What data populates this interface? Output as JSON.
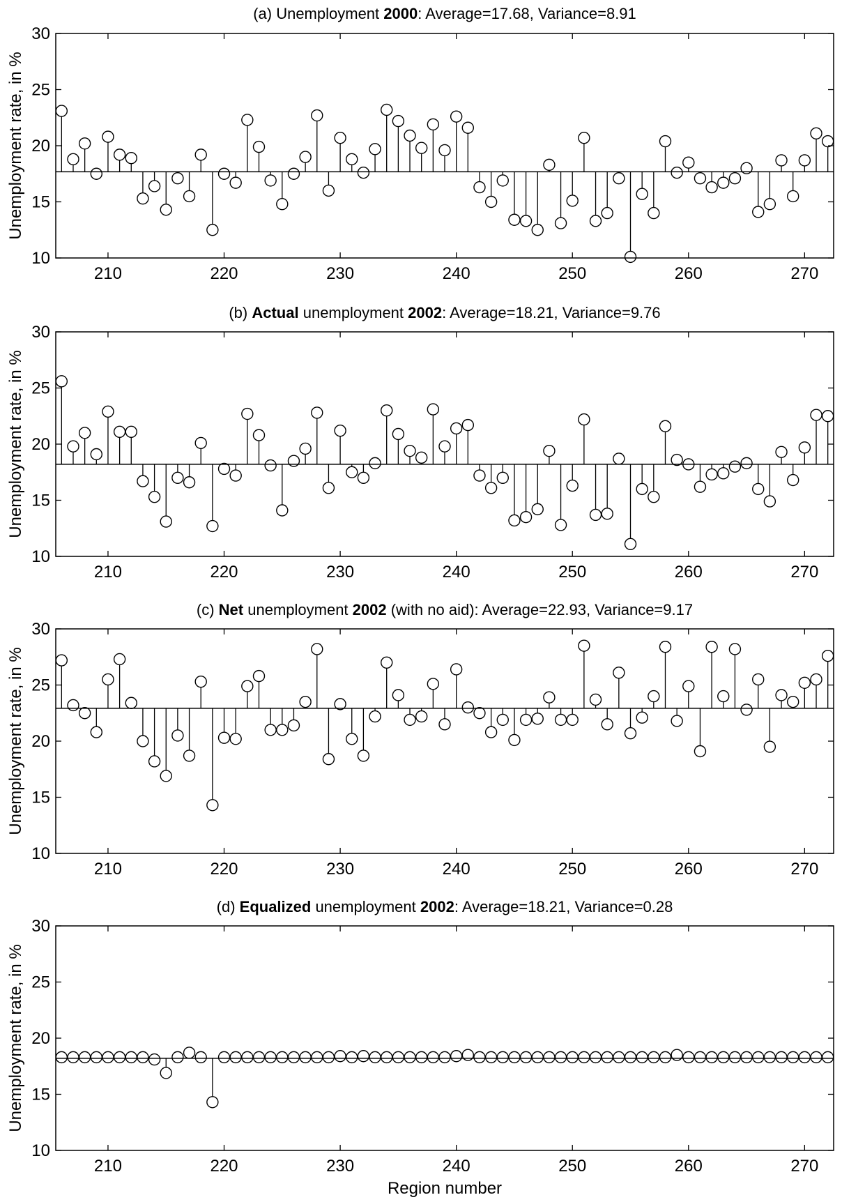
{
  "chart_data": [
    {
      "type": "scatter",
      "style": "stem",
      "title_parts": [
        {
          "text": "(a)  Unemployment ",
          "bold": false
        },
        {
          "text": "2000",
          "bold": true
        },
        {
          "text": ":  Average=17.68,  Variance=8.91",
          "bold": false
        }
      ],
      "ylabel": "Unemployment rate, in %",
      "xlabel": "",
      "xlim": [
        205.5,
        272.5
      ],
      "ylim": [
        10,
        30
      ],
      "xticks": [
        210,
        220,
        230,
        240,
        250,
        260,
        270
      ],
      "yticks": [
        10,
        15,
        20,
        25,
        30
      ],
      "baseline": 17.68,
      "x": [
        206,
        207,
        208,
        209,
        210,
        211,
        212,
        213,
        214,
        215,
        216,
        217,
        218,
        219,
        220,
        221,
        222,
        223,
        224,
        225,
        226,
        227,
        228,
        229,
        230,
        231,
        232,
        233,
        234,
        235,
        236,
        237,
        238,
        239,
        240,
        241,
        242,
        243,
        244,
        245,
        246,
        247,
        248,
        249,
        250,
        251,
        252,
        253,
        254,
        255,
        256,
        257,
        258,
        259,
        260,
        261,
        262,
        263,
        264,
        265,
        266,
        267,
        268,
        269,
        270,
        271,
        272
      ],
      "y": [
        23.1,
        18.8,
        20.2,
        17.5,
        20.8,
        19.2,
        18.9,
        15.3,
        16.4,
        14.3,
        17.1,
        15.5,
        19.2,
        12.5,
        17.5,
        16.7,
        22.3,
        19.9,
        16.9,
        14.8,
        17.5,
        19.0,
        22.7,
        16.0,
        20.7,
        18.8,
        17.6,
        19.7,
        23.2,
        22.2,
        20.9,
        19.8,
        21.9,
        19.6,
        22.6,
        21.6,
        16.3,
        15.0,
        16.9,
        13.4,
        13.3,
        12.5,
        18.3,
        13.1,
        15.1,
        20.7,
        13.3,
        14.0,
        17.1,
        10.1,
        15.7,
        14.0,
        20.4,
        17.6,
        18.5,
        17.1,
        16.3,
        16.7,
        17.1,
        18.0,
        14.1,
        14.8,
        18.7,
        15.5,
        18.7,
        21.1,
        20.4
      ]
    },
    {
      "type": "scatter",
      "style": "stem",
      "title_parts": [
        {
          "text": "(b)   ",
          "bold": false
        },
        {
          "text": "Actual",
          "bold": true
        },
        {
          "text": " unemployment ",
          "bold": false
        },
        {
          "text": "2002",
          "bold": true
        },
        {
          "text": ":  Average=18.21,  Variance=9.76",
          "bold": false
        }
      ],
      "ylabel": "Unemployment rate, in %",
      "xlabel": "",
      "xlim": [
        205.5,
        272.5
      ],
      "ylim": [
        10,
        30
      ],
      "xticks": [
        210,
        220,
        230,
        240,
        250,
        260,
        270
      ],
      "yticks": [
        10,
        15,
        20,
        25,
        30
      ],
      "baseline": 18.21,
      "x": [
        206,
        207,
        208,
        209,
        210,
        211,
        212,
        213,
        214,
        215,
        216,
        217,
        218,
        219,
        220,
        221,
        222,
        223,
        224,
        225,
        226,
        227,
        228,
        229,
        230,
        231,
        232,
        233,
        234,
        235,
        236,
        237,
        238,
        239,
        240,
        241,
        242,
        243,
        244,
        245,
        246,
        247,
        248,
        249,
        250,
        251,
        252,
        253,
        254,
        255,
        256,
        257,
        258,
        259,
        260,
        261,
        262,
        263,
        264,
        265,
        266,
        267,
        268,
        269,
        270,
        271,
        272
      ],
      "y": [
        25.6,
        19.8,
        21.0,
        19.1,
        22.9,
        21.1,
        21.1,
        16.7,
        15.3,
        13.1,
        17.0,
        16.6,
        20.1,
        12.7,
        17.8,
        17.2,
        22.7,
        20.8,
        18.1,
        14.1,
        18.5,
        19.6,
        22.8,
        16.1,
        21.2,
        17.5,
        17.0,
        18.3,
        23.0,
        20.9,
        19.4,
        18.8,
        23.1,
        19.8,
        21.4,
        21.7,
        17.2,
        16.1,
        17.0,
        13.2,
        13.5,
        14.2,
        19.4,
        12.8,
        16.3,
        22.2,
        13.7,
        13.8,
        18.7,
        11.1,
        16.0,
        15.3,
        21.6,
        18.6,
        18.2,
        16.2,
        17.3,
        17.4,
        18.0,
        18.3,
        16.0,
        14.9,
        19.3,
        16.8,
        19.7,
        22.6,
        22.5
      ]
    },
    {
      "type": "scatter",
      "style": "stem",
      "title_parts": [
        {
          "text": "(c)  ",
          "bold": false
        },
        {
          "text": "Net",
          "bold": true
        },
        {
          "text": " unemployment ",
          "bold": false
        },
        {
          "text": "2002",
          "bold": true
        },
        {
          "text": " (with no aid): Average=22.93,  Variance=9.17",
          "bold": false
        }
      ],
      "ylabel": "Unemployment rate, in %",
      "xlabel": "",
      "xlim": [
        205.5,
        272.5
      ],
      "ylim": [
        10,
        30
      ],
      "xticks": [
        210,
        220,
        230,
        240,
        250,
        260,
        270
      ],
      "yticks": [
        10,
        15,
        20,
        25,
        30
      ],
      "baseline": 22.93,
      "x": [
        206,
        207,
        208,
        209,
        210,
        211,
        212,
        213,
        214,
        215,
        216,
        217,
        218,
        219,
        220,
        221,
        222,
        223,
        224,
        225,
        226,
        227,
        228,
        229,
        230,
        231,
        232,
        233,
        234,
        235,
        236,
        237,
        238,
        239,
        240,
        241,
        242,
        243,
        244,
        245,
        246,
        247,
        248,
        249,
        250,
        251,
        252,
        253,
        254,
        255,
        256,
        257,
        258,
        259,
        260,
        261,
        262,
        263,
        264,
        265,
        266,
        267,
        268,
        269,
        270,
        271,
        272
      ],
      "y": [
        27.2,
        23.2,
        22.5,
        20.8,
        25.5,
        27.3,
        23.4,
        20.0,
        18.2,
        16.9,
        20.5,
        18.7,
        25.3,
        14.3,
        20.3,
        20.2,
        24.9,
        25.8,
        21.0,
        21.0,
        21.4,
        23.5,
        28.2,
        18.4,
        23.3,
        20.2,
        18.7,
        22.2,
        27.0,
        24.1,
        21.9,
        22.2,
        25.1,
        21.5,
        26.4,
        23.0,
        22.5,
        20.8,
        21.9,
        20.1,
        21.9,
        22.0,
        23.9,
        21.9,
        21.9,
        28.5,
        23.7,
        21.5,
        26.1,
        20.7,
        22.1,
        24.0,
        28.4,
        21.8,
        24.9,
        19.1,
        28.4,
        24.0,
        28.2,
        22.8,
        25.5,
        19.5,
        24.1,
        23.5,
        25.2,
        25.5,
        27.6
      ]
    },
    {
      "type": "scatter",
      "style": "stem",
      "title_parts": [
        {
          "text": "(d)  ",
          "bold": false
        },
        {
          "text": "Equalized",
          "bold": true
        },
        {
          "text": " unemployment ",
          "bold": false
        },
        {
          "text": "2002",
          "bold": true
        },
        {
          "text": ": Average=18.21,  Variance=0.28",
          "bold": false
        }
      ],
      "ylabel": "Unemployment rate, in %",
      "xlabel": "Region number",
      "xlim": [
        205.5,
        272.5
      ],
      "ylim": [
        10,
        30
      ],
      "xticks": [
        210,
        220,
        230,
        240,
        250,
        260,
        270
      ],
      "yticks": [
        10,
        15,
        20,
        25,
        30
      ],
      "baseline": 18.21,
      "x": [
        206,
        207,
        208,
        209,
        210,
        211,
        212,
        213,
        214,
        215,
        216,
        217,
        218,
        219,
        220,
        221,
        222,
        223,
        224,
        225,
        226,
        227,
        228,
        229,
        230,
        231,
        232,
        233,
        234,
        235,
        236,
        237,
        238,
        239,
        240,
        241,
        242,
        243,
        244,
        245,
        246,
        247,
        248,
        249,
        250,
        251,
        252,
        253,
        254,
        255,
        256,
        257,
        258,
        259,
        260,
        261,
        262,
        263,
        264,
        265,
        266,
        267,
        268,
        269,
        270,
        271,
        272
      ],
      "y": [
        18.3,
        18.3,
        18.3,
        18.3,
        18.3,
        18.3,
        18.3,
        18.3,
        18.1,
        16.9,
        18.3,
        18.7,
        18.3,
        14.3,
        18.3,
        18.3,
        18.3,
        18.3,
        18.3,
        18.3,
        18.3,
        18.3,
        18.3,
        18.3,
        18.4,
        18.3,
        18.4,
        18.3,
        18.3,
        18.3,
        18.3,
        18.3,
        18.3,
        18.3,
        18.4,
        18.5,
        18.3,
        18.3,
        18.3,
        18.3,
        18.3,
        18.3,
        18.3,
        18.3,
        18.3,
        18.3,
        18.3,
        18.3,
        18.3,
        18.3,
        18.3,
        18.3,
        18.3,
        18.5,
        18.3,
        18.3,
        18.3,
        18.3,
        18.3,
        18.3,
        18.3,
        18.3,
        18.3,
        18.3,
        18.3,
        18.3,
        18.3
      ]
    }
  ]
}
